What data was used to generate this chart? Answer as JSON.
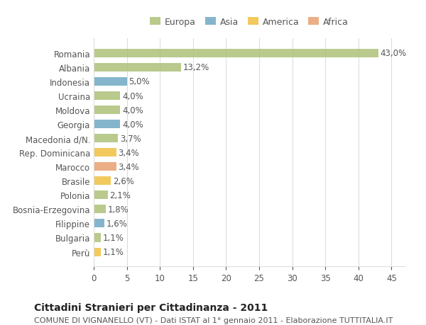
{
  "categories": [
    "Romania",
    "Albania",
    "Indonesia",
    "Ucraina",
    "Moldova",
    "Georgia",
    "Macedonia d/N.",
    "Rep. Dominicana",
    "Marocco",
    "Brasile",
    "Polonia",
    "Bosnia-Erzegovina",
    "Filippine",
    "Bulgaria",
    "Perù"
  ],
  "values": [
    43.0,
    13.2,
    5.0,
    4.0,
    4.0,
    4.0,
    3.7,
    3.4,
    3.4,
    2.6,
    2.1,
    1.8,
    1.6,
    1.1,
    1.1
  ],
  "continents": [
    "Europa",
    "Europa",
    "Asia",
    "Europa",
    "Europa",
    "Asia",
    "Europa",
    "America",
    "Africa",
    "America",
    "Europa",
    "Europa",
    "Asia",
    "Europa",
    "America"
  ],
  "colors": {
    "Europa": "#adc178",
    "Asia": "#6fa8c5",
    "America": "#f0c040",
    "Africa": "#e8a070"
  },
  "legend_colors": {
    "Europa": "#adc178",
    "Asia": "#6fa8c5",
    "America": "#f0c040",
    "Africa": "#e8a070"
  },
  "xlim": [
    0,
    47
  ],
  "xticks": [
    0,
    5,
    10,
    15,
    20,
    25,
    30,
    35,
    40,
    45
  ],
  "title": "Cittadini Stranieri per Cittadinanza - 2011",
  "subtitle": "COMUNE DI VIGNANELLO (VT) - Dati ISTAT al 1° gennaio 2011 - Elaborazione TUTTITALIA.IT",
  "background_color": "#ffffff",
  "grid_color": "#dddddd",
  "bar_height": 0.6,
  "label_fontsize": 8.5,
  "value_fontsize": 8.5,
  "title_fontsize": 10,
  "subtitle_fontsize": 8
}
